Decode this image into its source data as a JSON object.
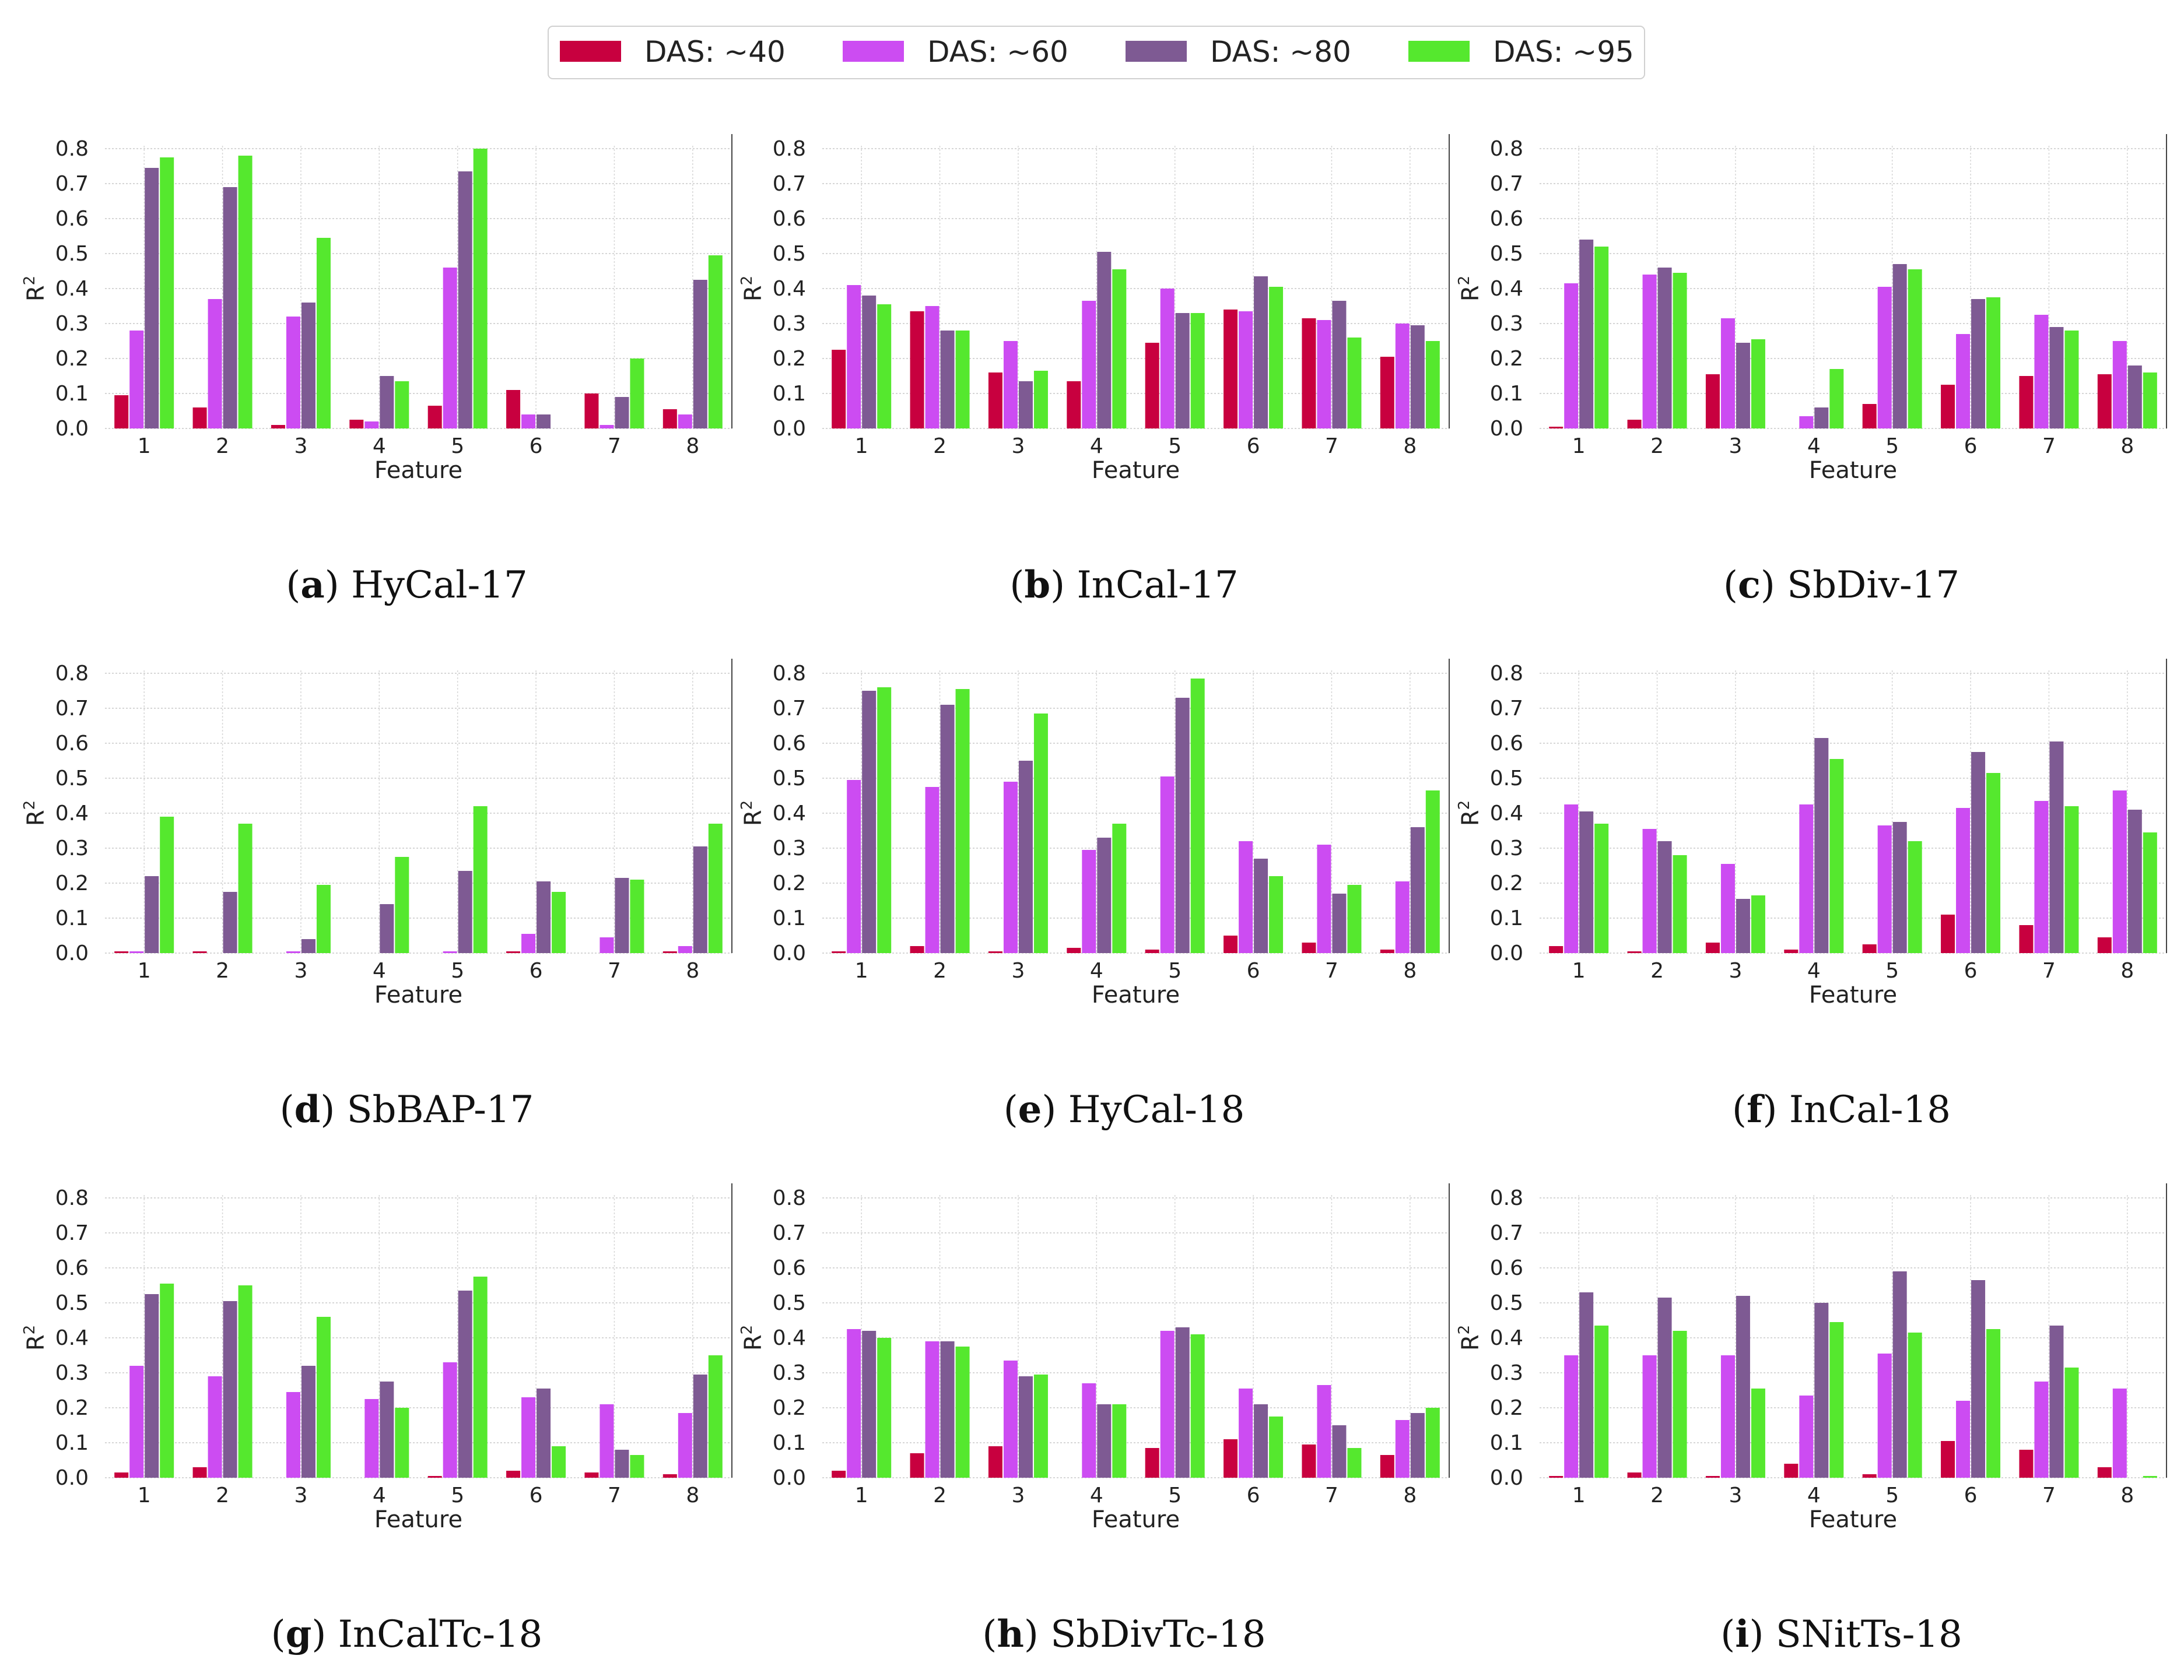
{
  "legend": [
    {
      "label": "DAS: ~40",
      "color": "#c8003f"
    },
    {
      "label": "DAS: ~60",
      "color": "#cc4cf2"
    },
    {
      "label": "DAS: ~80",
      "color": "#7e5a93"
    },
    {
      "label": "DAS: ~95",
      "color": "#55e82e"
    }
  ],
  "chart_data": [
    {
      "type": "bar",
      "letter": "a",
      "name": "HyCal-17",
      "xlabel": "Feature",
      "ylabel": "R2",
      "ylim": [
        0,
        0.8
      ],
      "categories": [
        "1",
        "2",
        "3",
        "4",
        "5",
        "6",
        "7",
        "8"
      ],
      "series": [
        {
          "name": "DAS: ~40",
          "values": [
            0.095,
            0.06,
            0.01,
            0.025,
            0.065,
            0.11,
            0.1,
            0.055
          ]
        },
        {
          "name": "DAS: ~60",
          "values": [
            0.28,
            0.37,
            0.32,
            0.02,
            0.46,
            0.04,
            0.01,
            0.04
          ]
        },
        {
          "name": "DAS: ~80",
          "values": [
            0.745,
            0.69,
            0.36,
            0.15,
            0.735,
            0.04,
            0.09,
            0.425
          ]
        },
        {
          "name": "DAS: ~95",
          "values": [
            0.775,
            0.78,
            0.545,
            0.135,
            0.8,
            0.0,
            0.2,
            0.495
          ]
        }
      ]
    },
    {
      "type": "bar",
      "letter": "b",
      "name": "InCal-17",
      "xlabel": "Feature",
      "ylabel": "R2",
      "ylim": [
        0,
        0.8
      ],
      "categories": [
        "1",
        "2",
        "3",
        "4",
        "5",
        "6",
        "7",
        "8"
      ],
      "series": [
        {
          "name": "DAS: ~40",
          "values": [
            0.225,
            0.335,
            0.16,
            0.135,
            0.245,
            0.34,
            0.315,
            0.205
          ]
        },
        {
          "name": "DAS: ~60",
          "values": [
            0.41,
            0.35,
            0.25,
            0.365,
            0.4,
            0.335,
            0.31,
            0.3
          ]
        },
        {
          "name": "DAS: ~80",
          "values": [
            0.38,
            0.28,
            0.135,
            0.505,
            0.33,
            0.435,
            0.365,
            0.295
          ]
        },
        {
          "name": "DAS: ~95",
          "values": [
            0.355,
            0.28,
            0.165,
            0.455,
            0.33,
            0.405,
            0.26,
            0.25
          ]
        }
      ]
    },
    {
      "type": "bar",
      "letter": "c",
      "name": "SbDiv-17",
      "xlabel": "Feature",
      "ylabel": "R2",
      "ylim": [
        0,
        0.8
      ],
      "categories": [
        "1",
        "2",
        "3",
        "4",
        "5",
        "6",
        "7",
        "8"
      ],
      "series": [
        {
          "name": "DAS: ~40",
          "values": [
            0.005,
            0.025,
            0.155,
            0.0,
            0.07,
            0.125,
            0.15,
            0.155
          ]
        },
        {
          "name": "DAS: ~60",
          "values": [
            0.415,
            0.44,
            0.315,
            0.035,
            0.405,
            0.27,
            0.325,
            0.25
          ]
        },
        {
          "name": "DAS: ~80",
          "values": [
            0.54,
            0.46,
            0.245,
            0.06,
            0.47,
            0.37,
            0.29,
            0.18
          ]
        },
        {
          "name": "DAS: ~95",
          "values": [
            0.52,
            0.445,
            0.255,
            0.17,
            0.455,
            0.375,
            0.28,
            0.16
          ]
        }
      ]
    },
    {
      "type": "bar",
      "letter": "d",
      "name": "SbBAP-17",
      "xlabel": "Feature",
      "ylabel": "R2",
      "ylim": [
        0,
        0.8
      ],
      "categories": [
        "1",
        "2",
        "3",
        "4",
        "5",
        "6",
        "7",
        "8"
      ],
      "series": [
        {
          "name": "DAS: ~40",
          "values": [
            0.005,
            0.005,
            0.0,
            0.0,
            0.0,
            0.005,
            0.0,
            0.005
          ]
        },
        {
          "name": "DAS: ~60",
          "values": [
            0.005,
            0.0,
            0.005,
            0.0,
            0.005,
            0.055,
            0.045,
            0.02
          ]
        },
        {
          "name": "DAS: ~80",
          "values": [
            0.22,
            0.175,
            0.04,
            0.14,
            0.235,
            0.205,
            0.215,
            0.305
          ]
        },
        {
          "name": "DAS: ~95",
          "values": [
            0.39,
            0.37,
            0.195,
            0.275,
            0.42,
            0.175,
            0.21,
            0.37
          ]
        }
      ]
    },
    {
      "type": "bar",
      "letter": "e",
      "name": "HyCal-18",
      "xlabel": "Feature",
      "ylabel": "R2",
      "ylim": [
        0,
        0.8
      ],
      "categories": [
        "1",
        "2",
        "3",
        "4",
        "5",
        "6",
        "7",
        "8"
      ],
      "series": [
        {
          "name": "DAS: ~40",
          "values": [
            0.005,
            0.02,
            0.005,
            0.015,
            0.01,
            0.05,
            0.03,
            0.01
          ]
        },
        {
          "name": "DAS: ~60",
          "values": [
            0.495,
            0.475,
            0.49,
            0.295,
            0.505,
            0.32,
            0.31,
            0.205
          ]
        },
        {
          "name": "DAS: ~80",
          "values": [
            0.75,
            0.71,
            0.55,
            0.33,
            0.73,
            0.27,
            0.17,
            0.36
          ]
        },
        {
          "name": "DAS: ~95",
          "values": [
            0.76,
            0.755,
            0.685,
            0.37,
            0.785,
            0.22,
            0.195,
            0.465
          ]
        }
      ]
    },
    {
      "type": "bar",
      "letter": "f",
      "name": "InCal-18",
      "xlabel": "Feature",
      "ylabel": "R2",
      "ylim": [
        0,
        0.8
      ],
      "categories": [
        "1",
        "2",
        "3",
        "4",
        "5",
        "6",
        "7",
        "8"
      ],
      "series": [
        {
          "name": "DAS: ~40",
          "values": [
            0.02,
            0.005,
            0.03,
            0.01,
            0.025,
            0.11,
            0.08,
            0.045
          ]
        },
        {
          "name": "DAS: ~60",
          "values": [
            0.425,
            0.355,
            0.255,
            0.425,
            0.365,
            0.415,
            0.435,
            0.465
          ]
        },
        {
          "name": "DAS: ~80",
          "values": [
            0.405,
            0.32,
            0.155,
            0.615,
            0.375,
            0.575,
            0.605,
            0.41
          ]
        },
        {
          "name": "DAS: ~95",
          "values": [
            0.37,
            0.28,
            0.165,
            0.555,
            0.32,
            0.515,
            0.42,
            0.345
          ]
        }
      ]
    },
    {
      "type": "bar",
      "letter": "g",
      "name": "InCalTc-18",
      "xlabel": "Feature",
      "ylabel": "R2",
      "ylim": [
        0,
        0.8
      ],
      "categories": [
        "1",
        "2",
        "3",
        "4",
        "5",
        "6",
        "7",
        "8"
      ],
      "series": [
        {
          "name": "DAS: ~40",
          "values": [
            0.015,
            0.03,
            0.0,
            0.0,
            0.005,
            0.02,
            0.015,
            0.01
          ]
        },
        {
          "name": "DAS: ~60",
          "values": [
            0.32,
            0.29,
            0.245,
            0.225,
            0.33,
            0.23,
            0.21,
            0.185
          ]
        },
        {
          "name": "DAS: ~80",
          "values": [
            0.525,
            0.505,
            0.32,
            0.275,
            0.535,
            0.255,
            0.08,
            0.295
          ]
        },
        {
          "name": "DAS: ~95",
          "values": [
            0.555,
            0.55,
            0.46,
            0.2,
            0.575,
            0.09,
            0.065,
            0.35
          ]
        }
      ]
    },
    {
      "type": "bar",
      "letter": "h",
      "name": "SbDivTc-18",
      "xlabel": "Feature",
      "ylabel": "R2",
      "ylim": [
        0,
        0.8
      ],
      "categories": [
        "1",
        "2",
        "3",
        "4",
        "5",
        "6",
        "7",
        "8"
      ],
      "series": [
        {
          "name": "DAS: ~40",
          "values": [
            0.02,
            0.07,
            0.09,
            0.0,
            0.085,
            0.11,
            0.095,
            0.065
          ]
        },
        {
          "name": "DAS: ~60",
          "values": [
            0.425,
            0.39,
            0.335,
            0.27,
            0.42,
            0.255,
            0.265,
            0.165
          ]
        },
        {
          "name": "DAS: ~80",
          "values": [
            0.42,
            0.39,
            0.29,
            0.21,
            0.43,
            0.21,
            0.15,
            0.185
          ]
        },
        {
          "name": "DAS: ~95",
          "values": [
            0.4,
            0.375,
            0.295,
            0.21,
            0.41,
            0.175,
            0.085,
            0.2
          ]
        }
      ]
    },
    {
      "type": "bar",
      "letter": "i",
      "name": "SNitTs-18",
      "xlabel": "Feature",
      "ylabel": "R2",
      "ylim": [
        0,
        0.8
      ],
      "categories": [
        "1",
        "2",
        "3",
        "4",
        "5",
        "6",
        "7",
        "8"
      ],
      "series": [
        {
          "name": "DAS: ~40",
          "values": [
            0.005,
            0.015,
            0.005,
            0.04,
            0.01,
            0.105,
            0.08,
            0.03
          ]
        },
        {
          "name": "DAS: ~60",
          "values": [
            0.35,
            0.35,
            0.35,
            0.235,
            0.355,
            0.22,
            0.275,
            0.255
          ]
        },
        {
          "name": "DAS: ~80",
          "values": [
            0.53,
            0.515,
            0.52,
            0.5,
            0.59,
            0.565,
            0.435,
            0.0
          ]
        },
        {
          "name": "DAS: ~95",
          "values": [
            0.435,
            0.42,
            0.255,
            0.445,
            0.415,
            0.425,
            0.315,
            0.005
          ]
        }
      ]
    }
  ]
}
